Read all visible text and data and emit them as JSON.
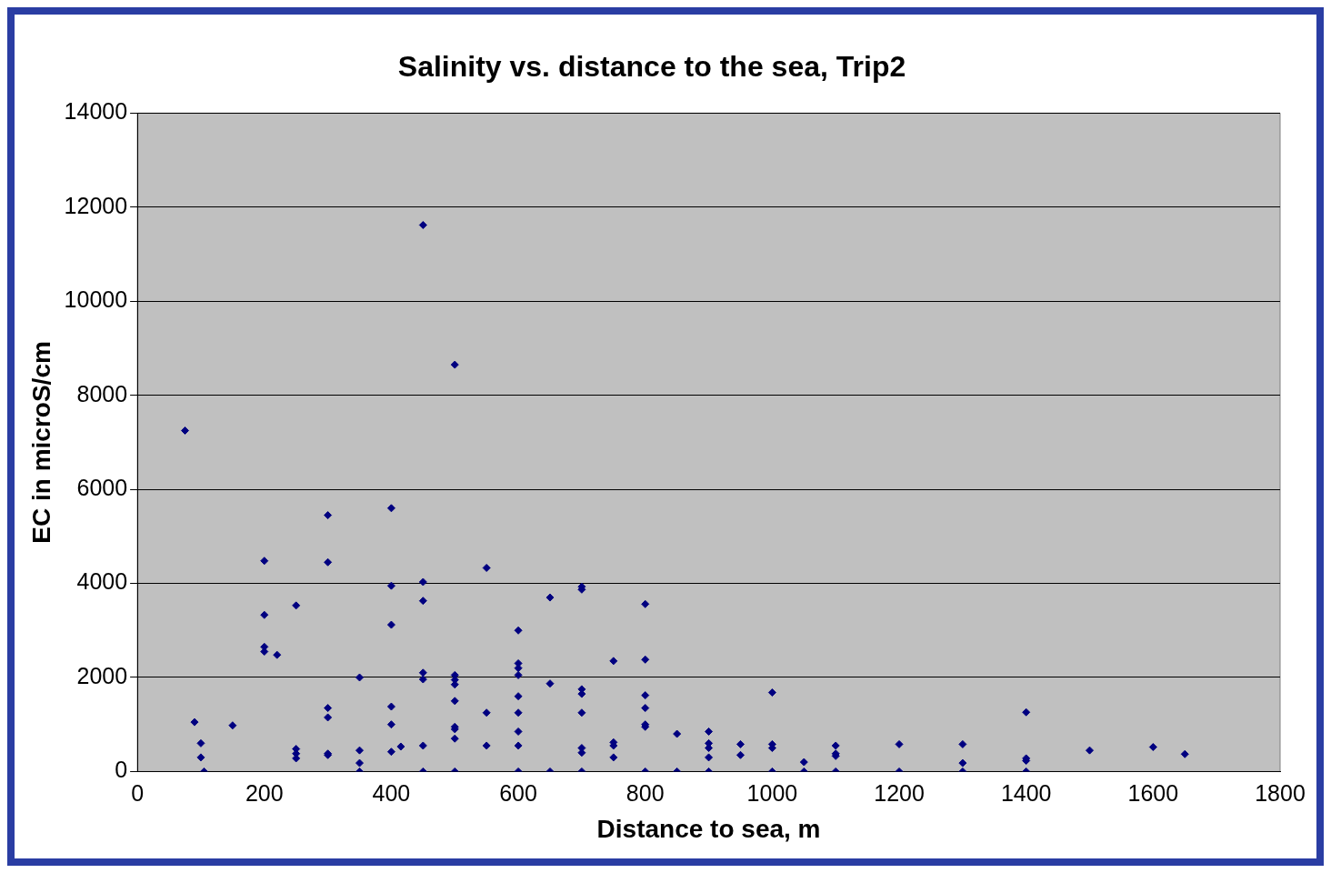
{
  "chart_data": {
    "type": "scatter",
    "title": "Salinity vs. distance to the sea, Trip2",
    "xlabel": "Distance to sea, m",
    "ylabel": "EC in microS/cm",
    "x": [
      75,
      90,
      100,
      100,
      105,
      150,
      200,
      200,
      200,
      200,
      220,
      250,
      250,
      250,
      250,
      300,
      300,
      300,
      300,
      300,
      300,
      350,
      350,
      350,
      350,
      400,
      400,
      400,
      400,
      400,
      400,
      415,
      450,
      450,
      450,
      450,
      450,
      450,
      450,
      500,
      500,
      500,
      500,
      500,
      500,
      500,
      500,
      500,
      550,
      550,
      550,
      600,
      600,
      600,
      600,
      600,
      600,
      600,
      600,
      600,
      650,
      650,
      650,
      700,
      700,
      700,
      700,
      700,
      700,
      700,
      700,
      750,
      750,
      750,
      750,
      800,
      800,
      800,
      800,
      800,
      800,
      800,
      850,
      850,
      900,
      900,
      900,
      900,
      900,
      950,
      950,
      1000,
      1000,
      1000,
      1000,
      1050,
      1050,
      1100,
      1100,
      1100,
      1100,
      1200,
      1200,
      1300,
      1300,
      1300,
      1400,
      1400,
      1400,
      1400,
      1500,
      1600,
      1650
    ],
    "series": [
      {
        "color": "#000080",
        "values": [
          7250,
          1050,
          600,
          300,
          0,
          980,
          4480,
          3330,
          2650,
          2550,
          2480,
          3530,
          480,
          380,
          280,
          5450,
          4450,
          1350,
          1150,
          380,
          350,
          2000,
          450,
          180,
          0,
          5600,
          3950,
          3120,
          1380,
          1000,
          420,
          530,
          11620,
          4030,
          3630,
          2100,
          1960,
          550,
          0,
          8650,
          2050,
          1950,
          1850,
          1500,
          950,
          900,
          700,
          0,
          4330,
          1250,
          550,
          3000,
          2300,
          2200,
          2050,
          1600,
          1250,
          850,
          550,
          0,
          3700,
          1870,
          0,
          3930,
          3870,
          1750,
          1650,
          1250,
          500,
          400,
          0,
          2350,
          620,
          550,
          300,
          3560,
          2380,
          1620,
          1350,
          1000,
          950,
          0,
          800,
          0,
          850,
          600,
          500,
          300,
          0,
          580,
          350,
          1680,
          580,
          500,
          0,
          200,
          0,
          550,
          380,
          330,
          0,
          580,
          0,
          580,
          180,
          0,
          1260,
          280,
          230,
          0,
          450,
          520,
          370
        ]
      }
    ],
    "xlim": [
      0,
      1800
    ],
    "xticks": [
      0,
      200,
      400,
      600,
      800,
      1000,
      1200,
      1400,
      1600,
      1800
    ],
    "ylim": [
      0,
      14000
    ],
    "yticks": [
      0,
      2000,
      4000,
      6000,
      8000,
      10000,
      12000,
      14000
    ],
    "grid": "y",
    "marker": "diamond",
    "legend": false
  }
}
